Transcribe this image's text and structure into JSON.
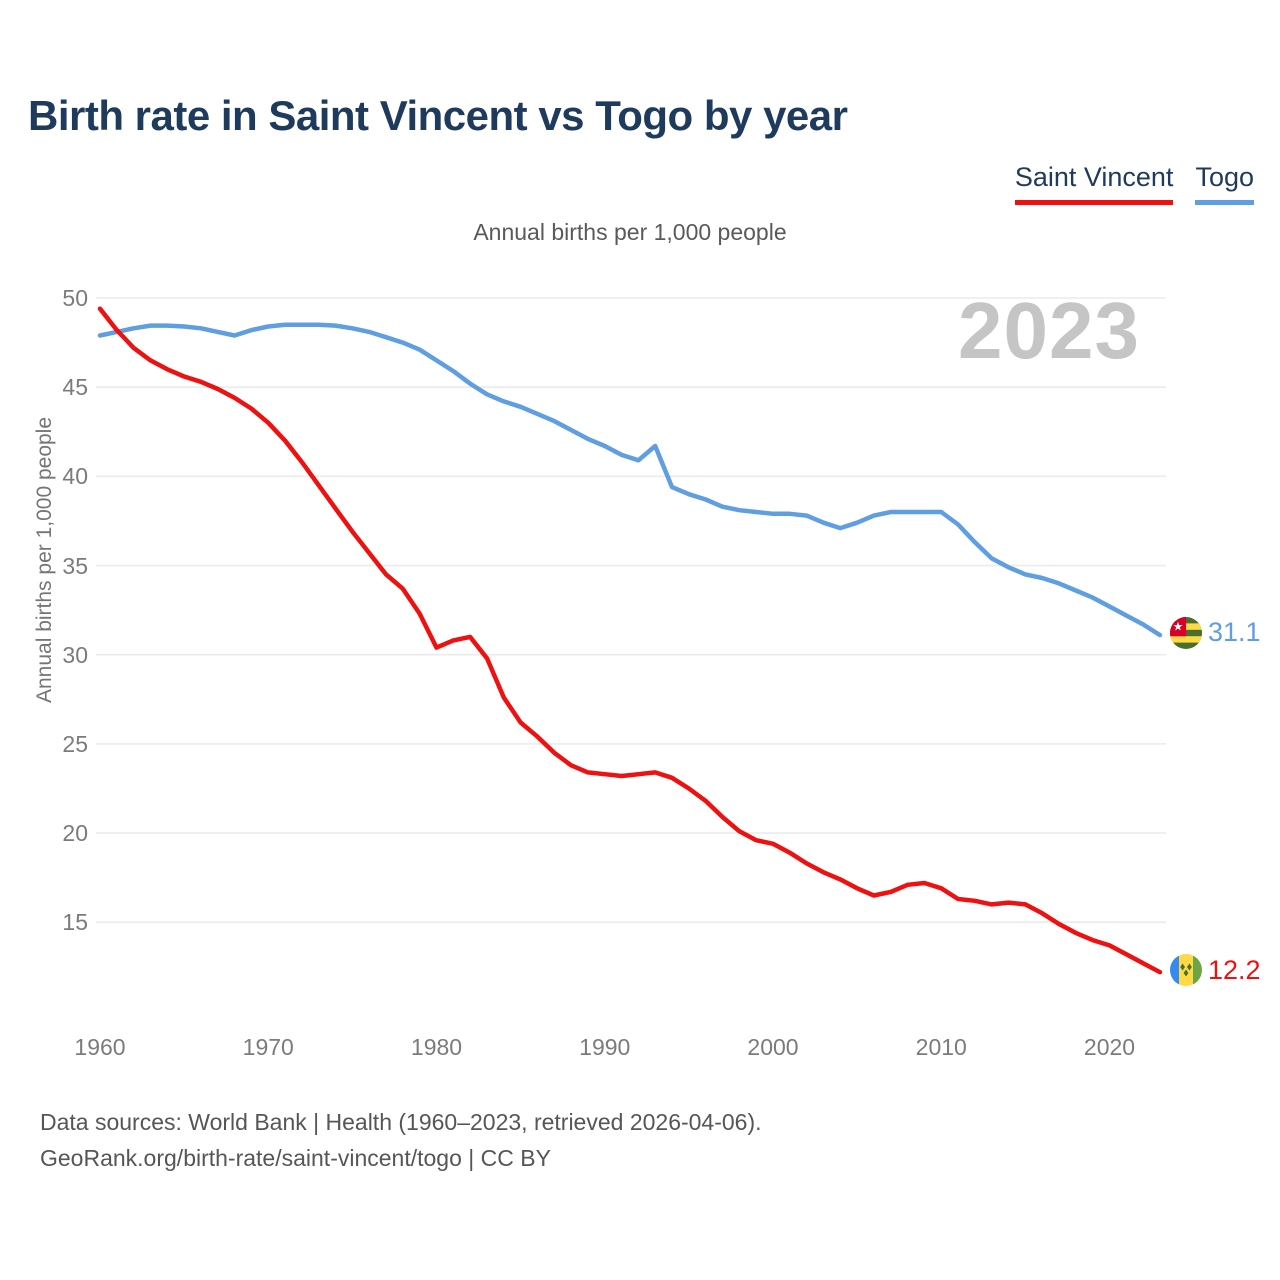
{
  "title": "Birth rate in Saint Vincent vs Togo by year",
  "legend": {
    "saint_vincent": "Saint Vincent",
    "togo": "Togo"
  },
  "subtitle": "Annual births per 1,000 people",
  "watermark": "2023",
  "y_axis_label": "Annual births per 1,000 people",
  "end_labels": {
    "togo": "31.1",
    "saint_vincent": "12.2"
  },
  "footer": {
    "line1": "Data sources: World Bank | Health (1960–2023, retrieved 2026-04-06).",
    "line2": "GeoRank.org/birth-rate/saint-vincent/togo | CC BY"
  },
  "colors": {
    "saint_vincent": "#ee1111",
    "togo": "#5f9ee1",
    "title_text": "#1e3a5c",
    "gridline": "#ebebeb",
    "tick_text": "#7b7b7b",
    "watermark_text": "#c5c5c5"
  },
  "chart_data": {
    "type": "line",
    "title": "Birth rate in Saint Vincent vs Togo by year",
    "subtitle": "Annual births per 1,000 people",
    "xlabel": "",
    "ylabel": "Annual births per 1,000 people",
    "x_range": [
      1960,
      2023
    ],
    "ylim": [
      11.5,
      50.5
    ],
    "grid": "horizontal",
    "legend_position": "top-right",
    "yticks": [
      15,
      20,
      25,
      30,
      35,
      40,
      45,
      50
    ],
    "xticks": [
      1960,
      1970,
      1980,
      1990,
      2000,
      2010,
      2020
    ],
    "x": [
      1960,
      1961,
      1962,
      1963,
      1964,
      1965,
      1966,
      1967,
      1968,
      1969,
      1970,
      1971,
      1972,
      1973,
      1974,
      1975,
      1976,
      1977,
      1978,
      1979,
      1980,
      1981,
      1982,
      1983,
      1984,
      1985,
      1986,
      1987,
      1988,
      1989,
      1990,
      1991,
      1992,
      1993,
      1994,
      1995,
      1996,
      1997,
      1998,
      1999,
      2000,
      2001,
      2002,
      2003,
      2004,
      2005,
      2006,
      2007,
      2008,
      2009,
      2010,
      2011,
      2012,
      2013,
      2014,
      2015,
      2016,
      2017,
      2018,
      2019,
      2020,
      2021,
      2022,
      2023
    ],
    "series": [
      {
        "name": "Togo",
        "color": "#5f9ee1",
        "end_value": 31.1,
        "values": [
          47.9,
          48.1,
          48.3,
          48.45,
          48.45,
          48.4,
          48.3,
          48.1,
          47.9,
          48.2,
          48.4,
          48.5,
          48.5,
          48.5,
          48.45,
          48.3,
          48.1,
          47.8,
          47.5,
          47.1,
          46.5,
          45.9,
          45.2,
          44.6,
          44.2,
          43.9,
          43.5,
          43.1,
          42.6,
          42.1,
          41.7,
          41.2,
          40.9,
          41.7,
          39.4,
          39.0,
          38.7,
          38.3,
          38.1,
          38.0,
          37.9,
          37.9,
          37.8,
          37.4,
          37.1,
          37.4,
          37.8,
          38.0,
          38.0,
          38.0,
          38.0,
          37.3,
          36.3,
          35.4,
          34.9,
          34.5,
          34.3,
          34.0,
          33.6,
          33.2,
          32.7,
          32.2,
          31.7,
          31.1
        ]
      },
      {
        "name": "Saint Vincent",
        "color": "#ee1111",
        "end_value": 12.2,
        "values": [
          49.4,
          48.2,
          47.2,
          46.5,
          46.0,
          45.6,
          45.3,
          44.9,
          44.4,
          43.8,
          43.0,
          42.0,
          40.8,
          39.5,
          38.2,
          36.9,
          35.7,
          34.5,
          33.7,
          32.3,
          30.4,
          30.8,
          31.0,
          29.8,
          27.6,
          26.2,
          25.4,
          24.5,
          23.8,
          23.4,
          23.3,
          23.2,
          23.3,
          23.4,
          23.1,
          22.5,
          21.8,
          20.9,
          20.1,
          19.6,
          19.4,
          18.9,
          18.3,
          17.8,
          17.4,
          16.9,
          16.5,
          16.7,
          17.1,
          17.2,
          16.9,
          16.3,
          16.2,
          16.0,
          16.1,
          16.0,
          15.5,
          14.9,
          14.4,
          14.0,
          13.7,
          13.2,
          12.7,
          12.2
        ]
      }
    ]
  }
}
